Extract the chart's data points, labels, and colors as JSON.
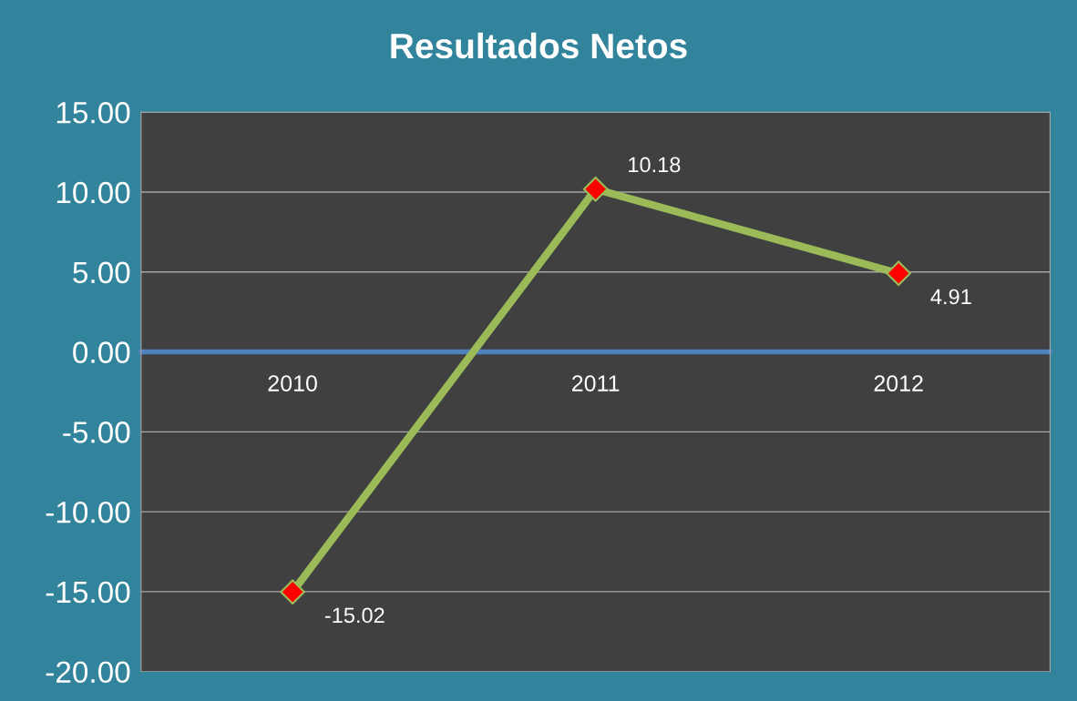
{
  "chart_data": {
    "type": "line",
    "title": "Resultados Netos",
    "categories": [
      "2010",
      "2011",
      "2012"
    ],
    "series": [
      {
        "color": "#9bbb59",
        "values": [
          -15.02,
          10.18,
          4.91
        ]
      }
    ],
    "ylim": [
      -20,
      15
    ],
    "yticks": [
      {
        "value": -20,
        "label": "-20.00"
      },
      {
        "value": -15,
        "label": "-15.00"
      },
      {
        "value": -10,
        "label": "-10.00"
      },
      {
        "value": -5,
        "label": "-5.00"
      },
      {
        "value": 0,
        "label": "0.00"
      },
      {
        "value": 5,
        "label": "5.00"
      },
      {
        "value": 10,
        "label": "10.00"
      },
      {
        "value": 15,
        "label": "15.00"
      }
    ],
    "grid": "y",
    "marker": "diamond",
    "line_style": "solid",
    "data_labels": true
  }
}
